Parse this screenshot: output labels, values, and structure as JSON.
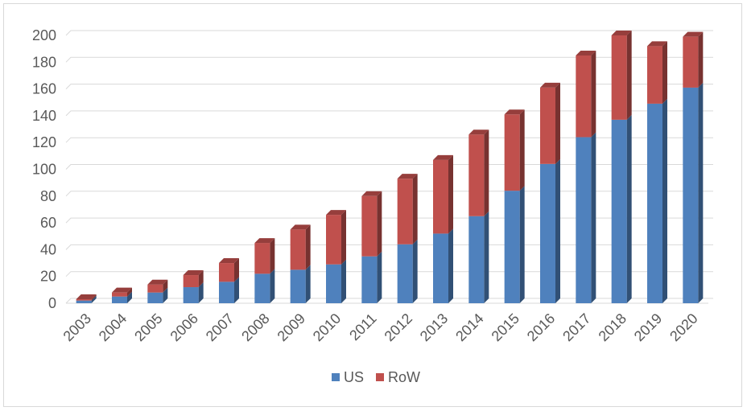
{
  "chart_data": {
    "type": "bar",
    "stacked": true,
    "three_d": true,
    "categories": [
      "2003",
      "2004",
      "2005",
      "2006",
      "2007",
      "2008",
      "2009",
      "2010",
      "2011",
      "2012",
      "2013",
      "2014",
      "2015",
      "2016",
      "2017",
      "2018",
      "2019",
      "2020"
    ],
    "series": [
      {
        "name": "US",
        "color": "#4f81bd",
        "values": [
          2,
          5,
          8,
          12,
          16,
          22,
          25,
          29,
          35,
          44,
          52,
          65,
          84,
          104,
          124,
          137,
          149,
          161
        ]
      },
      {
        "name": "RoW",
        "color": "#c0504d",
        "values": [
          1,
          3,
          6,
          9,
          14,
          23,
          30,
          37,
          45,
          49,
          55,
          61,
          57,
          57,
          61,
          63,
          43,
          38
        ]
      }
    ],
    "ylim": [
      0,
      200
    ],
    "yticks": [
      0,
      20,
      40,
      60,
      80,
      100,
      120,
      140,
      160,
      180,
      200
    ],
    "grid": true,
    "legend_position": "bottom"
  }
}
